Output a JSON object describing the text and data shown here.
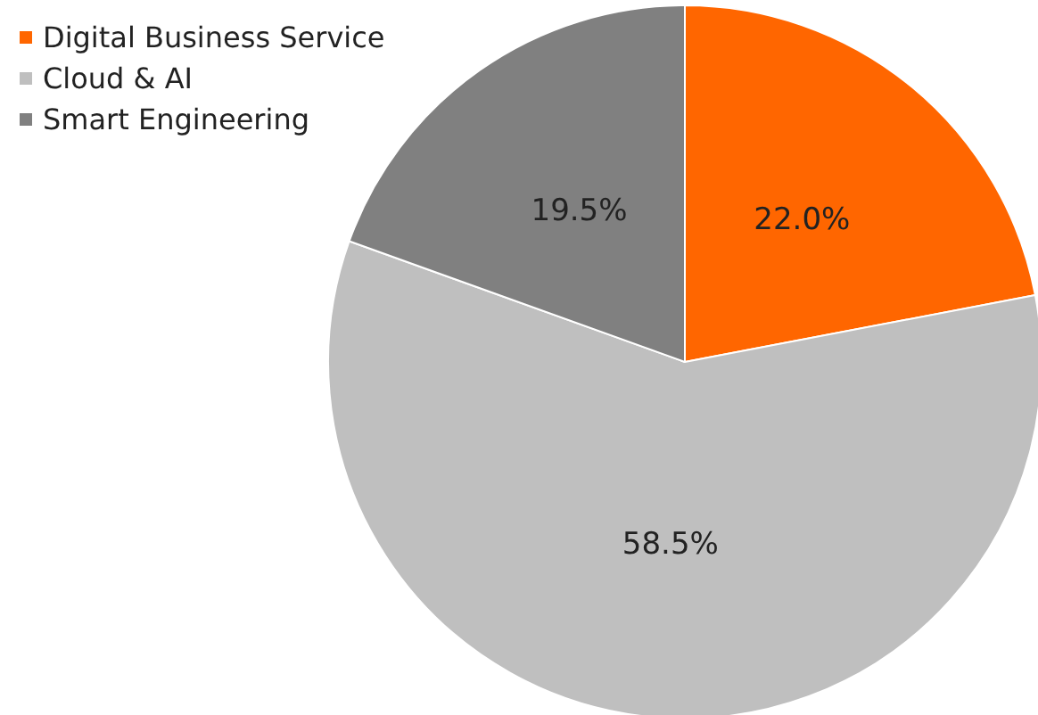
{
  "chart_data": {
    "type": "pie",
    "categories": [
      "Digital Business Service",
      "Cloud & AI",
      "Smart Engineering"
    ],
    "values": [
      22.0,
      58.5,
      19.5
    ],
    "colors": [
      "#ff6600",
      "#bfbfbf",
      "#808080"
    ],
    "value_labels": [
      "22.0%",
      "58.5%",
      "19.5%"
    ],
    "legend": "top left"
  }
}
